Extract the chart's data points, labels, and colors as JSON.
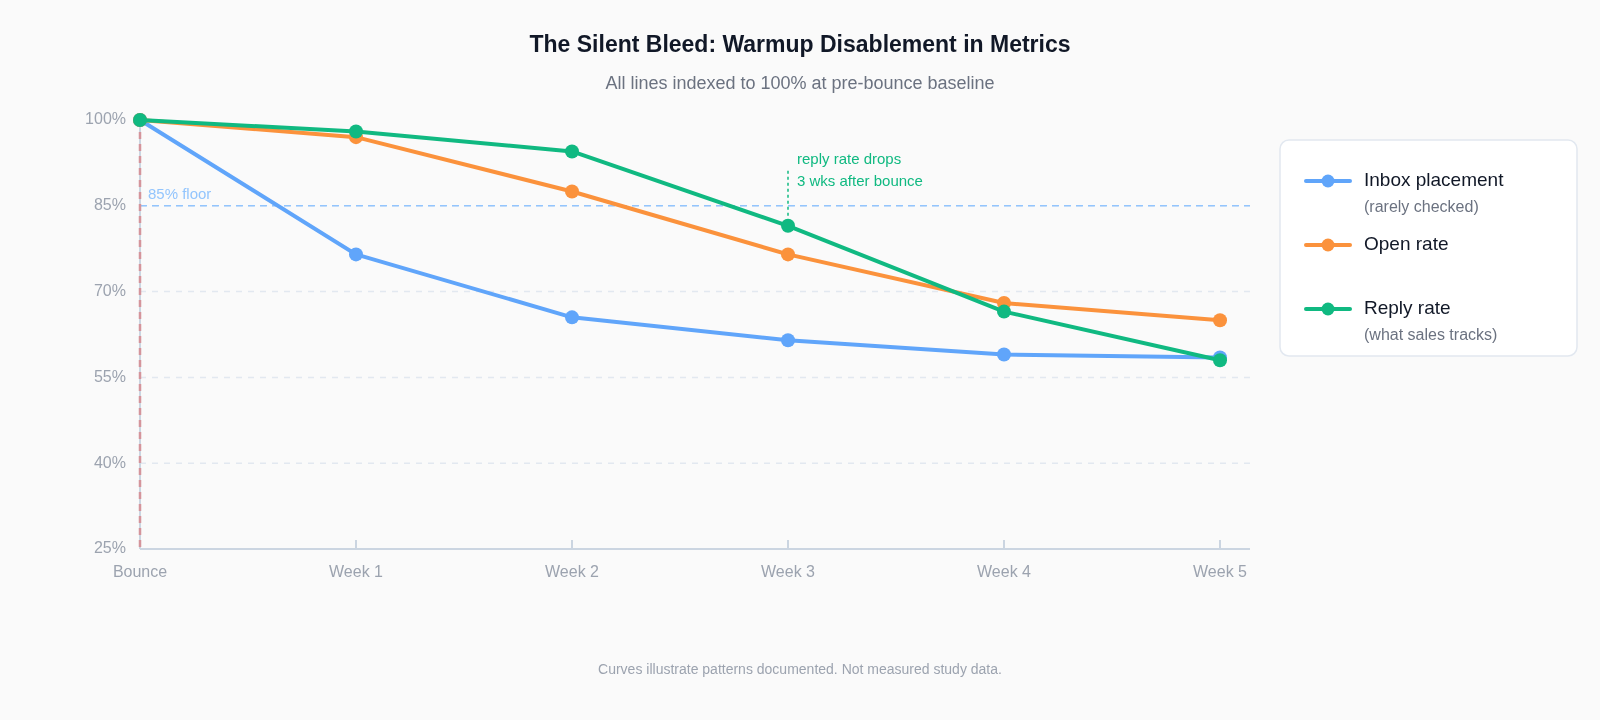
{
  "chart_data": {
    "type": "line",
    "title": "The Silent Bleed: Warmup Disablement in Metrics",
    "subtitle": "All lines indexed to 100% at pre-bounce baseline",
    "categories": [
      "Bounce",
      "Week 1",
      "Week 2",
      "Week 3",
      "Week 4",
      "Week 5"
    ],
    "series": [
      {
        "name": "Inbox placement\n(rarely checked)",
        "color": "#60a5fa",
        "values": [
          100,
          76.5,
          65.5,
          61.5,
          59,
          58.5
        ]
      },
      {
        "name": "Open rate",
        "color": "#fb923c",
        "values": [
          100,
          97,
          87.5,
          76.5,
          68,
          65
        ]
      },
      {
        "name": "Reply rate\n(what sales tracks)",
        "color": "#10b981",
        "values": [
          100,
          98,
          94.5,
          81.5,
          66.5,
          58
        ]
      }
    ],
    "ylim": [
      25,
      100
    ],
    "yticks": [
      {
        "value": 25,
        "label": "25%"
      },
      {
        "value": 40,
        "label": "40%"
      },
      {
        "value": 55,
        "label": "55%"
      },
      {
        "value": 70,
        "label": "70%"
      },
      {
        "value": 85,
        "label": "85%"
      },
      {
        "value": 100,
        "label": "100%"
      }
    ],
    "grid": "y",
    "legend": "right",
    "marker": "circle",
    "line_style": "solid",
    "ref_lines": [
      {
        "axis": "y",
        "value": 85,
        "label": "85% floor",
        "color": "#93c5fd",
        "line_style": "dashed"
      },
      {
        "axis": "x",
        "value": "Bounce",
        "color": "#d4949b",
        "line_style": "dashed"
      }
    ],
    "annotations": [
      {
        "text": "reply rate drops\n3 wks after bounce",
        "x": "Week 3",
        "y": 81.5
      },
      "Curves illustrate patterns documented. Not measured study data."
    ]
  }
}
